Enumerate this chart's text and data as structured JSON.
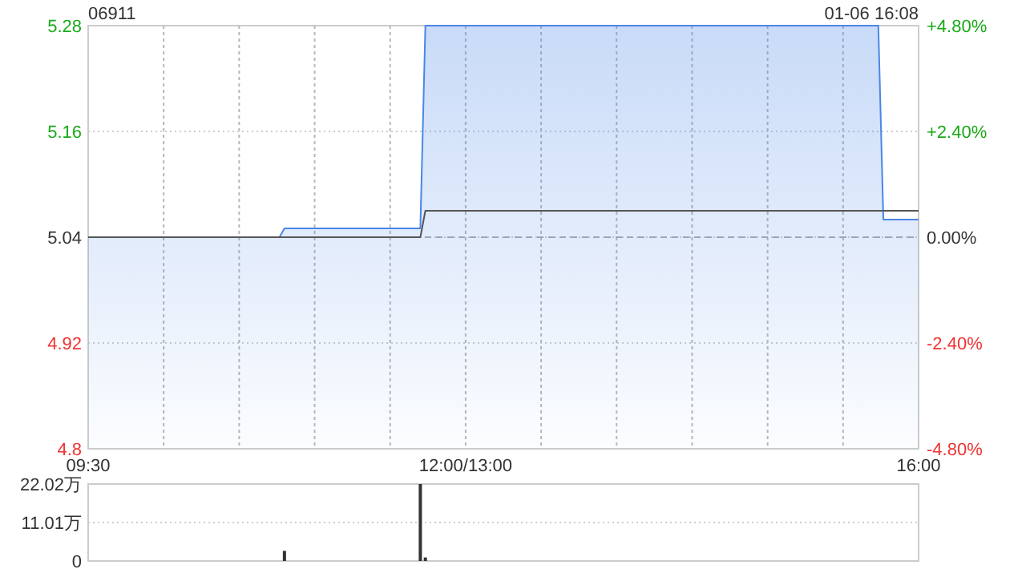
{
  "chart_data": [
    {
      "type": "area",
      "title": "06911",
      "annotations": [
        "01-06 16:08"
      ],
      "categories": [
        "09:30",
        null,
        null,
        null,
        null,
        null,
        null,
        null,
        null,
        null,
        null,
        null,
        null,
        null,
        null,
        null,
        null,
        null,
        null,
        null,
        null,
        null,
        null,
        null,
        null,
        null,
        null,
        null,
        null,
        null,
        null,
        null,
        null,
        null,
        null,
        null,
        null,
        null,
        null,
        null,
        null,
        null,
        null,
        null,
        null,
        null,
        null,
        null,
        null,
        null,
        null,
        null,
        null,
        null,
        null,
        null,
        null,
        null,
        null,
        null,
        null,
        null,
        null,
        null,
        null,
        null,
        null,
        null,
        null,
        null,
        null,
        null,
        null,
        null,
        null,
        "12:00/13:00",
        null,
        null,
        null,
        null,
        null,
        null,
        null,
        null,
        null,
        null,
        null,
        null,
        null,
        null,
        null,
        null,
        null,
        null,
        null,
        null,
        null,
        null,
        null,
        null,
        null,
        null,
        null,
        null,
        null,
        null,
        null,
        null,
        null,
        null,
        null,
        null,
        null,
        null,
        null,
        null,
        null,
        null,
        null,
        null,
        null,
        null,
        null,
        null,
        null,
        null,
        null,
        null,
        null,
        null,
        null,
        null,
        null,
        null,
        null,
        null,
        null,
        null,
        null,
        null,
        null,
        null,
        null,
        null,
        null,
        null,
        null,
        null,
        null,
        null,
        null,
        null,
        null,
        null,
        null,
        null,
        null,
        null,
        null,
        null,
        null,
        null,
        null,
        null,
        null,
        "16:00"
      ],
      "ylim": [
        4.8,
        5.28
      ],
      "yticks": [
        4.8,
        4.92,
        5.04,
        5.16,
        5.28
      ],
      "y2lim": [
        -4.8,
        4.8
      ],
      "y2ticks": [
        {
          "value": -4.8,
          "label": "-4.80%"
        },
        {
          "value": -2.4,
          "label": "-2.40%"
        },
        {
          "value": 0,
          "label": "0.00%"
        },
        {
          "value": 2.4,
          "label": "+2.40%"
        },
        {
          "value": 4.8,
          "label": "+4.80%"
        }
      ],
      "grid": true,
      "ref_lines": [
        {
          "axis": "y",
          "value": 5.04,
          "color": "#aaaaaa",
          "line_style": "dashed"
        }
      ],
      "series": [
        {
          "color": "#4a86e8",
          "values": [
            5.04,
            5.04,
            5.04,
            5.04,
            5.04,
            5.04,
            5.04,
            5.04,
            5.04,
            5.04,
            5.04,
            5.04,
            5.04,
            5.04,
            5.04,
            5.04,
            5.04,
            5.04,
            5.04,
            5.04,
            5.04,
            5.04,
            5.04,
            5.04,
            5.04,
            5.04,
            5.04,
            5.04,
            5.04,
            5.04,
            5.04,
            5.04,
            5.04,
            5.04,
            5.04,
            5.04,
            5.04,
            5.04,
            5.04,
            5.05,
            5.05,
            5.05,
            5.05,
            5.05,
            5.05,
            5.05,
            5.05,
            5.05,
            5.05,
            5.05,
            5.05,
            5.05,
            5.05,
            5.05,
            5.05,
            5.05,
            5.05,
            5.05,
            5.05,
            5.05,
            5.05,
            5.05,
            5.05,
            5.05,
            5.05,
            5.05,
            5.05,
            5.28,
            5.28,
            5.28,
            5.28,
            5.28,
            5.28,
            5.28,
            5.28,
            5.28,
            5.28,
            5.28,
            5.28,
            5.28,
            5.28,
            5.28,
            5.28,
            5.28,
            5.28,
            5.28,
            5.28,
            5.28,
            5.28,
            5.28,
            5.28,
            5.28,
            5.28,
            5.28,
            5.28,
            5.28,
            5.28,
            5.28,
            5.28,
            5.28,
            5.28,
            5.28,
            5.28,
            5.28,
            5.28,
            5.28,
            5.28,
            5.28,
            5.28,
            5.28,
            5.28,
            5.28,
            5.28,
            5.28,
            5.28,
            5.28,
            5.28,
            5.28,
            5.28,
            5.28,
            5.28,
            5.28,
            5.28,
            5.28,
            5.28,
            5.28,
            5.28,
            5.28,
            5.28,
            5.28,
            5.28,
            5.28,
            5.28,
            5.28,
            5.28,
            5.28,
            5.28,
            5.28,
            5.28,
            5.28,
            5.28,
            5.28,
            5.28,
            5.28,
            5.28,
            5.28,
            5.28,
            5.28,
            5.28,
            5.28,
            5.28,
            5.28,
            5.28,
            5.28,
            5.28,
            5.28,
            5.28,
            5.28,
            5.06,
            5.06,
            5.06,
            5.06,
            5.06,
            5.06,
            5.06,
            5.06
          ]
        },
        {
          "type": "line",
          "color": "#555555",
          "values": [
            5.04,
            5.04,
            5.04,
            5.04,
            5.04,
            5.04,
            5.04,
            5.04,
            5.04,
            5.04,
            5.04,
            5.04,
            5.04,
            5.04,
            5.04,
            5.04,
            5.04,
            5.04,
            5.04,
            5.04,
            5.04,
            5.04,
            5.04,
            5.04,
            5.04,
            5.04,
            5.04,
            5.04,
            5.04,
            5.04,
            5.04,
            5.04,
            5.04,
            5.04,
            5.04,
            5.04,
            5.04,
            5.04,
            5.04,
            5.04,
            5.04,
            5.04,
            5.04,
            5.04,
            5.04,
            5.04,
            5.04,
            5.04,
            5.04,
            5.04,
            5.04,
            5.04,
            5.04,
            5.04,
            5.04,
            5.04,
            5.04,
            5.04,
            5.04,
            5.04,
            5.04,
            5.04,
            5.04,
            5.04,
            5.04,
            5.04,
            5.04,
            5.07,
            5.07,
            5.07,
            5.07,
            5.07,
            5.07,
            5.07,
            5.07,
            5.07,
            5.07,
            5.07,
            5.07,
            5.07,
            5.07,
            5.07,
            5.07,
            5.07,
            5.07,
            5.07,
            5.07,
            5.07,
            5.07,
            5.07,
            5.07,
            5.07,
            5.07,
            5.07,
            5.07,
            5.07,
            5.07,
            5.07,
            5.07,
            5.07,
            5.07,
            5.07,
            5.07,
            5.07,
            5.07,
            5.07,
            5.07,
            5.07,
            5.07,
            5.07,
            5.07,
            5.07,
            5.07,
            5.07,
            5.07,
            5.07,
            5.07,
            5.07,
            5.07,
            5.07,
            5.07,
            5.07,
            5.07,
            5.07,
            5.07,
            5.07,
            5.07,
            5.07,
            5.07,
            5.07,
            5.07,
            5.07,
            5.07,
            5.07,
            5.07,
            5.07,
            5.07,
            5.07,
            5.07,
            5.07,
            5.07,
            5.07,
            5.07,
            5.07,
            5.07,
            5.07,
            5.07,
            5.07,
            5.07,
            5.07,
            5.07,
            5.07,
            5.07,
            5.07,
            5.07,
            5.07,
            5.07,
            5.07,
            5.07,
            5.07,
            5.07,
            5.07,
            5.07,
            5.07,
            5.07,
            5.07
          ]
        }
      ]
    },
    {
      "type": "bar",
      "ylim": [
        0,
        22.02
      ],
      "categories": [
        null,
        null,
        null,
        null,
        null,
        null,
        null,
        null,
        null,
        null,
        null,
        null,
        null,
        null,
        null,
        null,
        null,
        null,
        null,
        null,
        null,
        null,
        null,
        null,
        null,
        null,
        null,
        null,
        null,
        null,
        null,
        null,
        null,
        null,
        null,
        null,
        null,
        null,
        null,
        null,
        null,
        null,
        null,
        null,
        null,
        null,
        null,
        null,
        null,
        null,
        null,
        null,
        null,
        null,
        null,
        null,
        null,
        null,
        null,
        null,
        null,
        null,
        null,
        null,
        null,
        null,
        null,
        null,
        null,
        null,
        null,
        null,
        null,
        null,
        null,
        null,
        null,
        null,
        null,
        null,
        null,
        null,
        null,
        null,
        null,
        null,
        null,
        null,
        null,
        null,
        null,
        null,
        null,
        null,
        null,
        null,
        null,
        null,
        null,
        null,
        null,
        null,
        null,
        null,
        null,
        null,
        null,
        null,
        null,
        null,
        null,
        null,
        null,
        null,
        null,
        null,
        null,
        null,
        null,
        null,
        null,
        null,
        null,
        null,
        null,
        null,
        null,
        null,
        null,
        null,
        null,
        null,
        null,
        null,
        null,
        null,
        null,
        null,
        null,
        null,
        null,
        null,
        null,
        null,
        null,
        null,
        null,
        null,
        null,
        null,
        null,
        null,
        null,
        null,
        null,
        null,
        null,
        null,
        null,
        null,
        null,
        null,
        null,
        null,
        null,
        null
      ],
      "yticks": [
        0,
        {
          "value": 11.01,
          "label": "11.01万"
        },
        {
          "value": 22.02,
          "label": "22.02万"
        }
      ],
      "grid": "y",
      "tick_labels": "y",
      "color": "#333333",
      "values": [
        0,
        0,
        0,
        0,
        0,
        0,
        0,
        0,
        0,
        0,
        0,
        0,
        0,
        0,
        0,
        0,
        0,
        0,
        0,
        0,
        0,
        0,
        0,
        0,
        0,
        0,
        0,
        0,
        0,
        0,
        0,
        0,
        0,
        0,
        0,
        0,
        0,
        0,
        0,
        2.9,
        0,
        0,
        0,
        0,
        0,
        0,
        0,
        0,
        0,
        0,
        0,
        0,
        0,
        0,
        0,
        0,
        0,
        0,
        0,
        0,
        0,
        0,
        0,
        0,
        0,
        0,
        22.02,
        1.0,
        0,
        0,
        0,
        0,
        0,
        0,
        0,
        0,
        0,
        0,
        0,
        0,
        0,
        0,
        0,
        0,
        0,
        0,
        0,
        0,
        0,
        0,
        0,
        0,
        0,
        0,
        0,
        0,
        0,
        0,
        0,
        0,
        0,
        0,
        0,
        0,
        0,
        0,
        0,
        0,
        0,
        0,
        0,
        0,
        0,
        0,
        0,
        0,
        0,
        0,
        0,
        0,
        0,
        0,
        0,
        0,
        0,
        0,
        0,
        0,
        0,
        0,
        0,
        0,
        0,
        0,
        0,
        0,
        0,
        0,
        0,
        0,
        0,
        0,
        0,
        0,
        0,
        0,
        0,
        0,
        0,
        0,
        0,
        0,
        0,
        0,
        0,
        0,
        0,
        0,
        0,
        0,
        0,
        0,
        0,
        0,
        0,
        0
      ]
    }
  ]
}
